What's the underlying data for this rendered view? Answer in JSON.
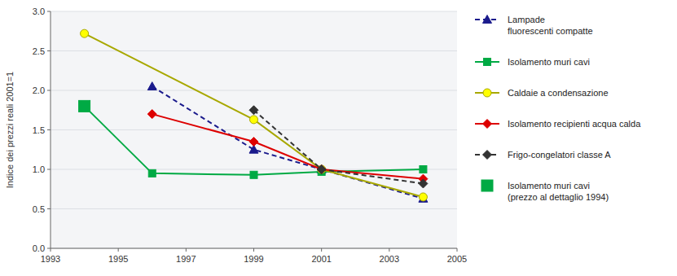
{
  "chart_data": {
    "type": "line",
    "y_label": "Indice dei prezzi reali 2001=1",
    "xlim": [
      1993,
      2005
    ],
    "xticks": [
      1993,
      1995,
      1997,
      1999,
      2001,
      2003,
      2005
    ],
    "ylim": [
      0,
      3.0
    ],
    "yticks": [
      {
        "value": 0,
        "label": "0.0"
      },
      0.5,
      {
        "value": 1.0,
        "label": "1.0"
      },
      1.5,
      {
        "value": 2.0,
        "label": "2.0"
      },
      2.5,
      {
        "value": 3.0,
        "label": "3.0"
      }
    ],
    "grid": true,
    "legend": "right",
    "series": [
      {
        "name": "Lampade\nfluorescenti compatte",
        "color": "#1a1a8c",
        "line_style": "dashed",
        "marker": "triangle",
        "x": [
          1996,
          1999,
          2001,
          2004
        ],
        "values": [
          2.05,
          1.25,
          1.0,
          0.63
        ]
      },
      {
        "name": "Isolamento muri cavi",
        "color": "#00aa44",
        "line_style": "solid",
        "marker": "square",
        "x": [
          1994,
          1996,
          1999,
          2001,
          2004
        ],
        "values": [
          1.8,
          0.95,
          0.93,
          0.97,
          1.0
        ]
      },
      {
        "name": "Caldaie a condensazione",
        "color": "#ffff00",
        "line_style": "solid",
        "marker": "circle",
        "x": [
          1994,
          1999,
          2001,
          2004
        ],
        "values": [
          2.72,
          1.63,
          1.0,
          0.65
        ]
      },
      {
        "name": "Isolamento recipienti acqua calda",
        "color": "#dd0000",
        "line_style": "solid",
        "marker": "diamond",
        "x": [
          1996,
          1999,
          2001,
          2004
        ],
        "values": [
          1.7,
          1.35,
          1.0,
          0.88
        ]
      },
      {
        "name": "Frigo-congelatori classe A",
        "color": "#333333",
        "line_style": "dashed",
        "marker": "diamond",
        "x": [
          1999,
          2001,
          2004
        ],
        "values": [
          1.75,
          1.0,
          0.82
        ]
      },
      {
        "name": "Isolamento muri cavi\n(prezzo al dettaglio 1994)",
        "color": "#00aa44",
        "line_style": "none",
        "marker": "big-square",
        "x": [
          1994
        ],
        "values": [
          1.8
        ]
      }
    ]
  }
}
